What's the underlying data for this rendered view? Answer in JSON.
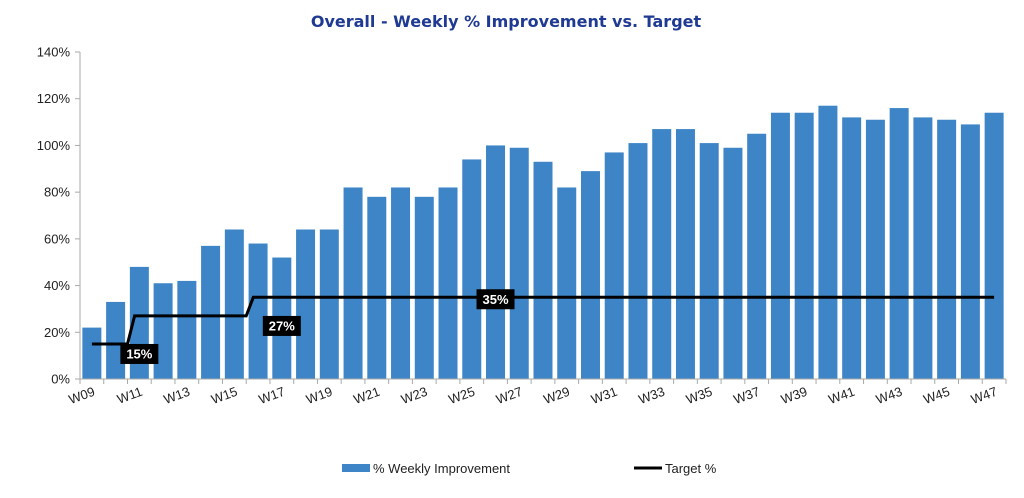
{
  "chart_data": {
    "type": "bar",
    "title": "Overall - Weekly % Improvement vs. Target",
    "xlabel": "",
    "ylabel": "",
    "ylim": [
      0,
      140
    ],
    "yticks": [
      "0%",
      "20%",
      "40%",
      "60%",
      "80%",
      "100%",
      "120%",
      "140%"
    ],
    "categories": [
      "W09",
      "W10",
      "W11",
      "W12",
      "W13",
      "W14",
      "W15",
      "W16",
      "W17",
      "W18",
      "W19",
      "W20",
      "W21",
      "W22",
      "W23",
      "W24",
      "W25",
      "W26",
      "W27",
      "W28",
      "W29",
      "W30",
      "W31",
      "W32",
      "W33",
      "W34",
      "W35",
      "W36",
      "W37",
      "W38",
      "W39",
      "W40",
      "W41",
      "W42",
      "W43",
      "W44",
      "W45",
      "W46",
      "W47"
    ],
    "x_tick_labels": [
      "W09",
      "",
      "W11",
      "",
      "W13",
      "",
      "W15",
      "",
      "W17",
      "",
      "W19",
      "",
      "W21",
      "",
      "W23",
      "",
      "W25",
      "",
      "W27",
      "",
      "W29",
      "",
      "W31",
      "",
      "W33",
      "",
      "W35",
      "",
      "W37",
      "",
      "W39",
      "",
      "W41",
      "",
      "W43",
      "",
      "W45",
      "",
      "W47"
    ],
    "series": [
      {
        "name": "% Weekly Improvement",
        "type": "bar",
        "values": [
          22,
          33,
          48,
          41,
          42,
          57,
          64,
          58,
          52,
          64,
          64,
          82,
          78,
          82,
          78,
          82,
          94,
          100,
          99,
          93,
          82,
          89,
          97,
          101,
          107,
          107,
          101,
          99,
          105,
          114,
          114,
          117,
          112,
          111,
          116,
          112,
          111,
          109,
          114
        ]
      },
      {
        "name": "Target %",
        "type": "line",
        "values": [
          15,
          15,
          27,
          27,
          27,
          27,
          27,
          35,
          35,
          35,
          35,
          35,
          35,
          35,
          35,
          35,
          35,
          35,
          35,
          35,
          35,
          35,
          35,
          35,
          35,
          35,
          35,
          35,
          35,
          35,
          35,
          35,
          35,
          35,
          35,
          35,
          35,
          35,
          35
        ]
      }
    ],
    "annotations": [
      {
        "text": "15%",
        "category": "W11",
        "value": 15
      },
      {
        "text": "27%",
        "category": "W17",
        "value": 27
      },
      {
        "text": "35%",
        "category": "W26",
        "value": 35
      }
    ],
    "colors": {
      "bar": "#3d85c6",
      "line": "#000000",
      "title": "#1f3a93",
      "axis": "#aaaaaa",
      "callout_bg": "#000000"
    },
    "grid": false,
    "legend_position": "bottom"
  }
}
